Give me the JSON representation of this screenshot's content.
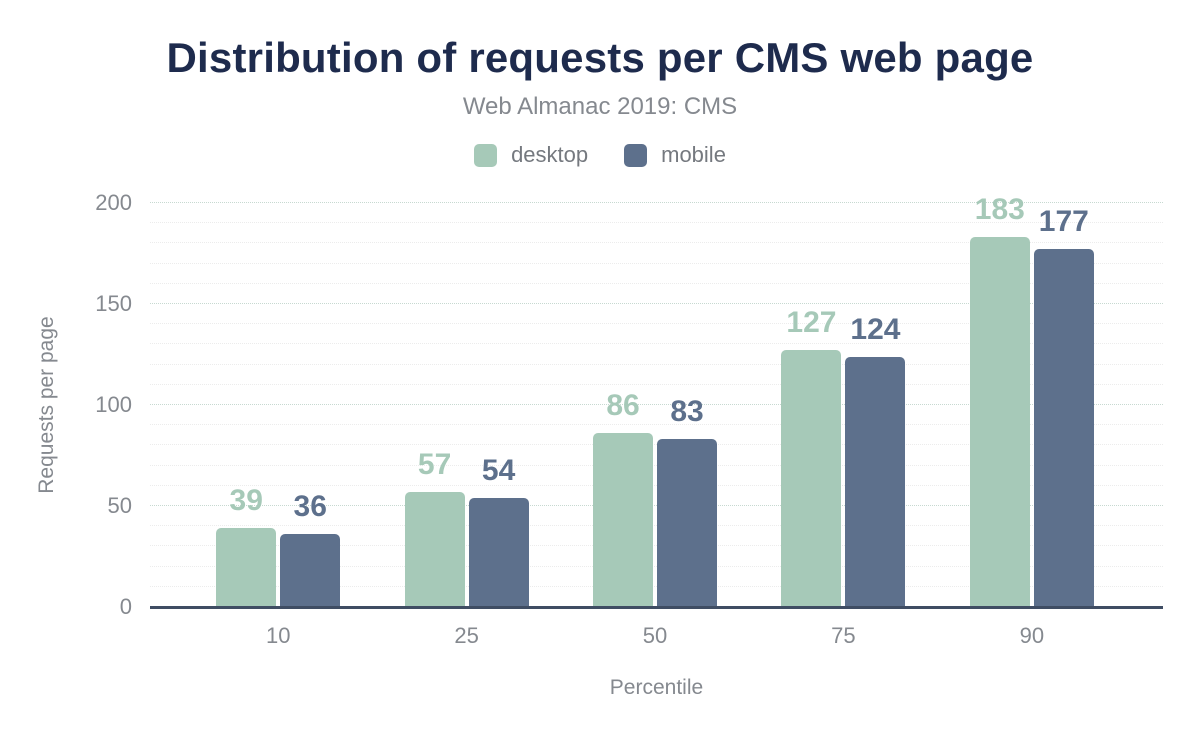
{
  "chart_data": {
    "type": "bar",
    "title": "Distribution of requests per CMS web page",
    "subtitle": "Web Almanac 2019: CMS",
    "xlabel": "Percentile",
    "ylabel": "Requests per page",
    "categories": [
      "10",
      "25",
      "50",
      "75",
      "90"
    ],
    "series": [
      {
        "name": "desktop",
        "color": "#a6c9b8",
        "values": [
          39,
          57,
          86,
          127,
          183
        ]
      },
      {
        "name": "mobile",
        "color": "#5d708c",
        "values": [
          36,
          54,
          83,
          124,
          177
        ]
      }
    ],
    "ylim": [
      0,
      200
    ],
    "yticks": [
      0,
      50,
      100,
      150,
      200
    ],
    "grid": {
      "on": true,
      "minor_step": 10,
      "major_step": 50
    },
    "legend_position": "top",
    "value_labels": true,
    "colors": {
      "title": "#1e2b4d",
      "text": "#85898f",
      "axis_line": "#3f4d63"
    }
  }
}
